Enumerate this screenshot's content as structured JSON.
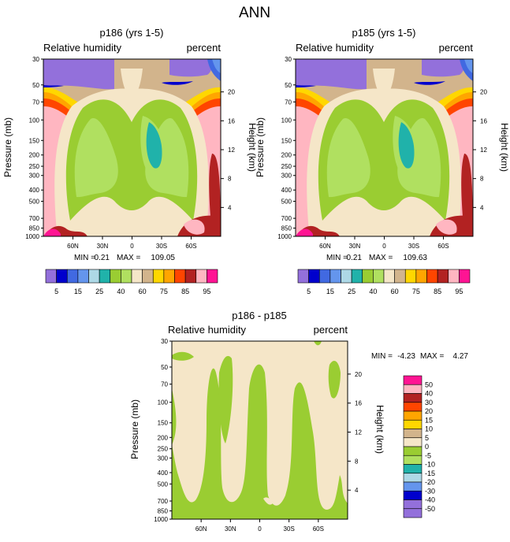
{
  "page_title": "ANN",
  "colors": {
    "rh_scale": [
      "#9370db",
      "#0000cd",
      "#4169e1",
      "#6495ed",
      "#add8e6",
      "#20b2aa",
      "#9acd32",
      "#b0e060",
      "#f5e6c8",
      "#d2b48c",
      "#ffd700",
      "#ffa500",
      "#ff4500",
      "#b22222",
      "#ffb6c1",
      "#ff1493"
    ],
    "diff_scale": [
      "#ff1493",
      "#ffb6c1",
      "#b22222",
      "#ff4500",
      "#ffa500",
      "#ffd700",
      "#d2b48c",
      "#f5e6c8",
      "#9acd32",
      "#b0e060",
      "#20b2aa",
      "#add8e6",
      "#6495ed",
      "#0000cd",
      "#9370db"
    ]
  },
  "chart_data": [
    {
      "type": "heatmap",
      "title": "p186 (yrs 1-5)",
      "left_label": "Relative humidity",
      "right_label": "percent",
      "ylabel": "Pressure (mb)",
      "y2label": "Height (km)",
      "xticks": [
        "60N",
        "30N",
        "0",
        "30S",
        "60S"
      ],
      "xlim": [
        90,
        -90
      ],
      "ylim": [
        1000,
        30
      ],
      "yticks": [
        30,
        50,
        70,
        100,
        150,
        200,
        250,
        300,
        400,
        500,
        700,
        850,
        1000
      ],
      "y2ticks": [
        20,
        16,
        12,
        8,
        4
      ],
      "min_label": "MIN =",
      "min": "0.21",
      "max_label": "MAX =",
      "max": "109.05",
      "colorbar_labels": [
        "5",
        "15",
        "25",
        "40",
        "60",
        "75",
        "85",
        "95"
      ]
    },
    {
      "type": "heatmap",
      "title": "p185 (yrs 1-5)",
      "left_label": "Relative humidity",
      "right_label": "percent",
      "ylabel": "Pressure (mb)",
      "y2label": "Height (km)",
      "xticks": [
        "60N",
        "30N",
        "0",
        "30S",
        "60S"
      ],
      "xlim": [
        90,
        -90
      ],
      "ylim": [
        1000,
        30
      ],
      "yticks": [
        30,
        50,
        70,
        100,
        150,
        200,
        250,
        300,
        400,
        500,
        700,
        850,
        1000
      ],
      "y2ticks": [
        20,
        16,
        12,
        8,
        4
      ],
      "min_label": "MIN =",
      "min": "0.21",
      "max_label": "MAX =",
      "max": "109.63",
      "colorbar_labels": [
        "5",
        "15",
        "25",
        "40",
        "60",
        "75",
        "85",
        "95"
      ]
    },
    {
      "type": "heatmap",
      "title": "p186 - p185",
      "left_label": "Relative humidity",
      "right_label": "percent",
      "ylabel": "Pressure (mb)",
      "y2label": "Height (km)",
      "xticks": [
        "60N",
        "30N",
        "0",
        "30S",
        "60S"
      ],
      "xlim": [
        90,
        -90
      ],
      "ylim": [
        1000,
        30
      ],
      "yticks": [
        30,
        50,
        70,
        100,
        150,
        200,
        250,
        300,
        400,
        500,
        700,
        850,
        1000
      ],
      "y2ticks": [
        20,
        16,
        12,
        8,
        4
      ],
      "min_label": "MIN =",
      "min": "-4.23",
      "max_label": "MAX =",
      "max": "4.27",
      "colorbar_labels": [
        "50",
        "40",
        "30",
        "20",
        "15",
        "10",
        "5",
        "0",
        "-5",
        "-10",
        "-15",
        "-20",
        "-30",
        "-40",
        "-50"
      ]
    }
  ]
}
